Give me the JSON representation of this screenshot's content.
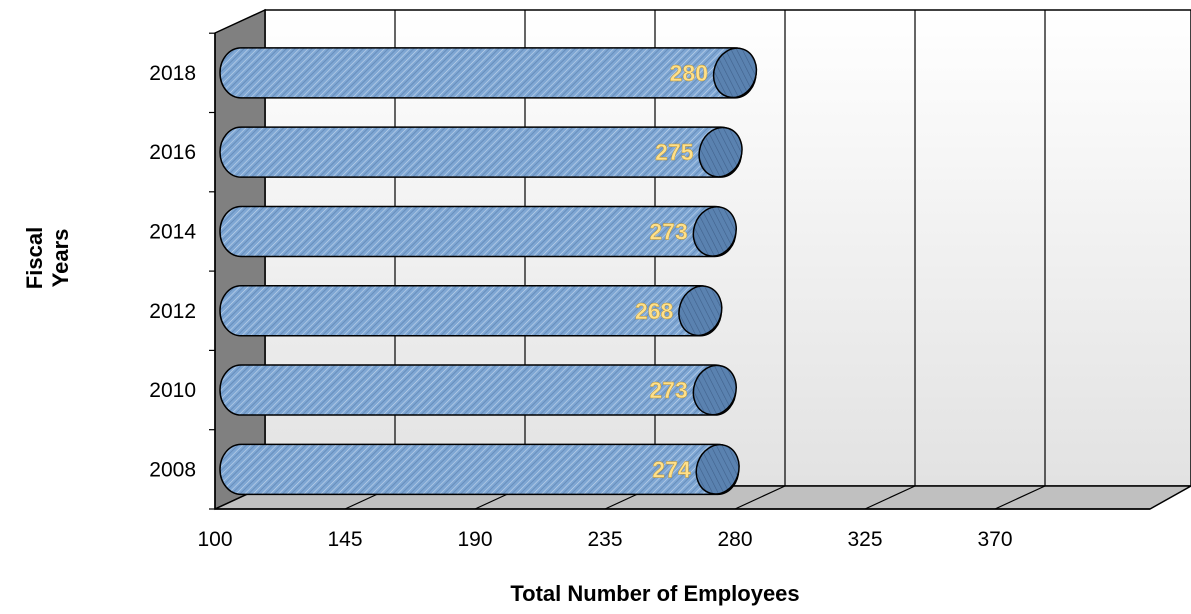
{
  "chart_data": {
    "type": "bar",
    "orientation": "horizontal",
    "style": "3d-cylinder",
    "categories": [
      "2008",
      "2010",
      "2012",
      "2014",
      "2016",
      "2018"
    ],
    "values": [
      274,
      273,
      268,
      273,
      275,
      280
    ],
    "xlabel": "Total Number of Employees",
    "ylabel": [
      "Fiscal",
      "Years"
    ],
    "xlim": [
      100,
      415
    ],
    "xticks": [
      100,
      145,
      190,
      235,
      280,
      325,
      370
    ],
    "grid": true,
    "legend": "none",
    "data_labels": true
  },
  "colors": {
    "bar_fill": "#7fa7d4",
    "bar_end": "#5a82b0",
    "bar_outline": "#000000",
    "data_label": "#ffe08a",
    "back_wall": "#eeeeee",
    "side_wall": "#808080",
    "floor": "#c0c0c0"
  }
}
